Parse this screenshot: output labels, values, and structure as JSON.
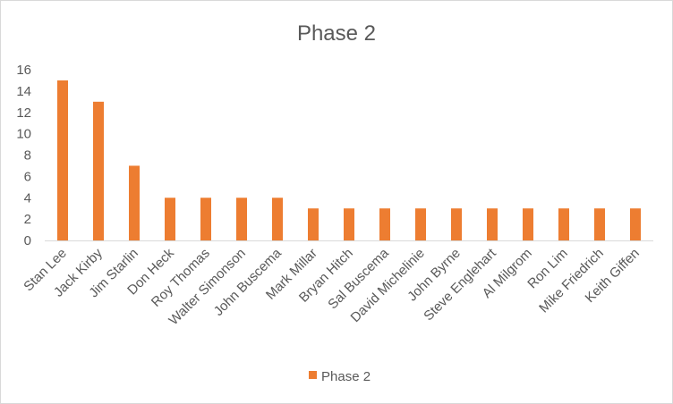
{
  "chart_data": {
    "type": "bar",
    "title": "Phase 2",
    "xlabel": "",
    "ylabel": "",
    "categories": [
      "Stan Lee",
      "Jack Kirby",
      "Jim Starlin",
      "Don Heck",
      "Roy Thomas",
      "Walter Simonson",
      "John Buscema",
      "Mark Millar",
      "Bryan Hitch",
      "Sal Buscema",
      "David Michelinie",
      "John Byrne",
      "Steve Englehart",
      "Al Milgrom",
      "Ron Lim",
      "Mike Friedrich",
      "Keith Giffen"
    ],
    "series": [
      {
        "name": "Phase 2",
        "color": "#ED7D31",
        "values": [
          15,
          13,
          7,
          4,
          4,
          4,
          4,
          3,
          3,
          3,
          3,
          3,
          3,
          3,
          3,
          3,
          3
        ]
      }
    ],
    "ylim": [
      0,
      16
    ],
    "yticks": [
      0,
      2,
      4,
      6,
      8,
      10,
      12,
      14,
      16
    ],
    "grid": false,
    "legend_position": "bottom"
  }
}
